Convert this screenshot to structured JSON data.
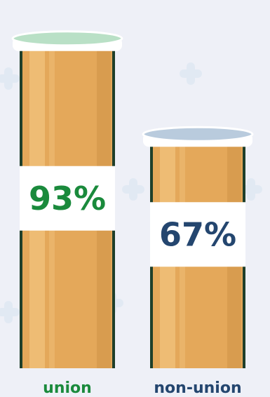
{
  "colors": {
    "background": "#eef0f7",
    "tube_fill": "#e4a85a",
    "tube_highlight": "#f0c07a",
    "tube_shadow": "#c98d42",
    "tube_outline": "#1f3f2a",
    "union_cap": "#b9e0c6",
    "non_union_cap": "#b9cbdd",
    "label_band": "#ffffff",
    "union_text": "#1a8a3c",
    "non_union_text": "#24466f",
    "union_category": "#1a8a3c",
    "non_union_category": "#24466f",
    "decoration": "#d9e6f2"
  },
  "chart_data": {
    "type": "bar",
    "categories": [
      "union",
      "non-union"
    ],
    "values": [
      93,
      67
    ],
    "value_labels": [
      "93%",
      "67%"
    ],
    "ylim": [
      0,
      100
    ],
    "title": "",
    "xlabel": "",
    "ylabel": "",
    "grid": false,
    "legend": "none"
  }
}
